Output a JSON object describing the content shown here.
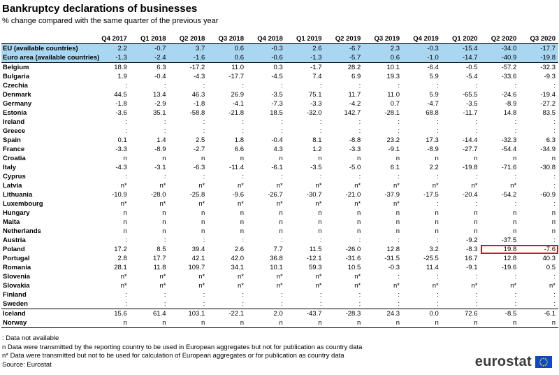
{
  "chart_data": {
    "type": "table",
    "title": "Bankruptcy declarations of businesses",
    "subtitle": "% change compared with the same quarter of the previous year",
    "corner_label": "",
    "columns": [
      "Q4 2017",
      "Q1 2018",
      "Q2 2018",
      "Q3 2018",
      "Q4 2018",
      "Q1 2019",
      "Q2 2019",
      "Q3 2019",
      "Q4 2019",
      "Q1 2020",
      "Q2 2020",
      "Q3 2020"
    ],
    "aggregate_rows": [
      {
        "name": "EU (available countries)",
        "values": [
          "2.2",
          "-0.7",
          "3.7",
          "0.6",
          "-0.3",
          "2.6",
          "-6.7",
          "2.3",
          "-0.3",
          "-15.4",
          "-34.0",
          "-17.7"
        ]
      },
      {
        "name": "Euro area (available countries)",
        "values": [
          "-1.3",
          "-2.4",
          "-1.6",
          "0.6",
          "-0.6",
          "-1.3",
          "-5.7",
          "0.6",
          "-1.0",
          "-14.7",
          "-40.9",
          "-19.8"
        ]
      }
    ],
    "rows": [
      {
        "name": "Belgium",
        "values": [
          "18.9",
          "6.3",
          "-17.2",
          "11.0",
          "0.3",
          "-1.7",
          "28.2",
          "10.1",
          "-6.4",
          "-0.5",
          "-57.2",
          "-32.3"
        ]
      },
      {
        "name": "Bulgaria",
        "values": [
          "1.9",
          "-0.4",
          "-4.3",
          "-17.7",
          "-4.5",
          "7.4",
          "6.9",
          "19.3",
          "5.9",
          "-5.4",
          "-33.6",
          "-9.3"
        ]
      },
      {
        "name": "Czechia",
        "values": [
          ":",
          ":",
          ":",
          ":",
          ":",
          ":",
          ":",
          ":",
          ":",
          ":",
          ":",
          ":"
        ]
      },
      {
        "name": "Denmark",
        "values": [
          "44.5",
          "13.4",
          "46.3",
          "26.9",
          "-3.5",
          "75.1",
          "11.7",
          "11.0",
          "5.9",
          "-65.5",
          "-24.6",
          "-19.4"
        ]
      },
      {
        "name": "Germany",
        "values": [
          "-1.8",
          "-2.9",
          "-1.8",
          "-4.1",
          "-7.3",
          "-3.3",
          "-4.2",
          "0.7",
          "-4.7",
          "-3.5",
          "-8.9",
          "-27.2"
        ]
      },
      {
        "name": "Estonia",
        "values": [
          "-3.6",
          "35.1",
          "-58.8",
          "-21.8",
          "18.5",
          "-32.0",
          "142.7",
          "-28.1",
          "68.8",
          "-11.7",
          "14.8",
          "83.5"
        ]
      },
      {
        "name": "Ireland",
        "values": [
          ":",
          ":",
          ":",
          ":",
          ":",
          ":",
          ":",
          ":",
          ":",
          ":",
          ":",
          ":"
        ]
      },
      {
        "name": "Greece",
        "values": [
          ":",
          ":",
          ":",
          ":",
          ":",
          ":",
          ":",
          ":",
          ":",
          ":",
          ":",
          ":"
        ]
      },
      {
        "name": "Spain",
        "values": [
          "0.1",
          "1.4",
          "2.5",
          "1.8",
          "-0.4",
          "8.1",
          "-8.8",
          "23.2",
          "17.3",
          "-14.4",
          "-32.3",
          "6.3"
        ]
      },
      {
        "name": "France",
        "values": [
          "-3.3",
          "-8.9",
          "-2.7",
          "6.6",
          "4.3",
          "1.2",
          "-3.3",
          "-9.1",
          "-8.9",
          "-27.7",
          "-54.4",
          "-34.9"
        ]
      },
      {
        "name": "Croatia",
        "values": [
          "n",
          "n",
          "n",
          "n",
          "n",
          "n",
          "n",
          "n",
          "n",
          "n",
          "n",
          "n"
        ]
      },
      {
        "name": "Italy",
        "values": [
          "-4.3",
          "-3.1",
          "-6.3",
          "-11.4",
          "-6.1",
          "-3.5",
          "-5.0",
          "6.1",
          "2.2",
          "-19.8",
          "-71.6",
          "-30.8"
        ]
      },
      {
        "name": "Cyprus",
        "values": [
          ":",
          ":",
          ":",
          ":",
          ":",
          ":",
          ":",
          ":",
          ":",
          ":",
          ":",
          ":"
        ]
      },
      {
        "name": "Latvia",
        "values": [
          "n*",
          "n*",
          "n*",
          "n*",
          "n*",
          "n*",
          "n*",
          "n*",
          "n*",
          "n*",
          "n*",
          ":"
        ]
      },
      {
        "name": "Lithuania",
        "values": [
          "-10.9",
          "-28.0",
          "-25.8",
          "-9.6",
          "-26.7",
          "-30.7",
          "-21.0",
          "-37.9",
          "-17.5",
          "-20.4",
          "-54.2",
          "-60.9"
        ]
      },
      {
        "name": "Luxembourg",
        "values": [
          "n*",
          "n*",
          "n*",
          "n*",
          "n*",
          "n*",
          "n*",
          "n*",
          ":",
          ":",
          ":",
          ":"
        ]
      },
      {
        "name": "Hungary",
        "values": [
          "n",
          "n",
          "n",
          "n",
          "n",
          "n",
          "n",
          "n",
          "n",
          "n",
          "n",
          "n"
        ]
      },
      {
        "name": "Malta",
        "values": [
          "n",
          "n",
          "n",
          "n",
          "n",
          "n",
          "n",
          "n",
          "n",
          "n",
          "n",
          "n"
        ]
      },
      {
        "name": "Netherlands",
        "values": [
          "n",
          "n",
          "n",
          "n",
          "n",
          "n",
          "n",
          "n",
          "n",
          "n",
          "n",
          "n"
        ]
      },
      {
        "name": "Austria",
        "values": [
          ":",
          ":",
          ":",
          ":",
          ":",
          ":",
          ":",
          ":",
          ":",
          "-9.2",
          "-37.5",
          ":"
        ]
      },
      {
        "name": "Poland",
        "values": [
          "17.2",
          "8.5",
          "39.4",
          "2.6",
          "7.7",
          "11.5",
          "-26.0",
          "12.8",
          "3.2",
          "-8.3",
          "19.8",
          "-7.6"
        ]
      },
      {
        "name": "Portugal",
        "values": [
          "2.8",
          "17.7",
          "42.1",
          "42.0",
          "36.8",
          "-12.1",
          "-31.6",
          "-31.5",
          "-25.5",
          "16.7",
          "12.8",
          "40.3"
        ]
      },
      {
        "name": "Romania",
        "values": [
          "28.1",
          "11.8",
          "109.7",
          "34.1",
          "10.1",
          "59.3",
          "10.5",
          "-0.3",
          "11.4",
          "-9.1",
          "-19.6",
          "0.5"
        ]
      },
      {
        "name": "Slovenia",
        "values": [
          "n*",
          "n*",
          "n*",
          "n*",
          "n*",
          "n*",
          "n*",
          ":",
          ":",
          ":",
          ":",
          ":"
        ]
      },
      {
        "name": "Slovakia",
        "values": [
          "n*",
          "n*",
          "n*",
          "n*",
          "n*",
          "n*",
          "n*",
          "n*",
          "n*",
          "n*",
          "n*",
          "n*"
        ]
      },
      {
        "name": "Finland",
        "values": [
          ":",
          ":",
          ":",
          ":",
          ":",
          ":",
          ":",
          ":",
          ":",
          ":",
          ":",
          ":"
        ]
      },
      {
        "name": "Sweden",
        "values": [
          ":",
          ":",
          ":",
          ":",
          ":",
          ":",
          ":",
          ":",
          ":",
          ":",
          ":",
          ":"
        ]
      }
    ],
    "other_rows": [
      {
        "name": "Iceland",
        "values": [
          "15.6",
          "61.4",
          "103.1",
          "-22.1",
          "2.0",
          "-43.7",
          "-28.3",
          "24.3",
          "0.0",
          "72.6",
          "-8.5",
          "-6.1"
        ]
      },
      {
        "name": "Norway",
        "values": [
          "n",
          "n",
          "n",
          "n",
          "n",
          "n",
          "n",
          "n",
          "n",
          "n",
          "n",
          "n"
        ]
      }
    ],
    "highlight": {
      "row": "Poland",
      "columns": [
        "Q2 2020",
        "Q3 2020"
      ],
      "color": "#d7141a"
    },
    "notes": [
      ":  Data not available",
      "n Data were transmitted by the reporting country to be used in European aggregates but not for publication as country data",
      "n* Data were transmitted but not to be used for calculation of European aggregates or for publication as country data",
      "Source: Eurostat"
    ]
  },
  "branding": {
    "logo_text": "eurostat",
    "flag_color": "#0e47cb",
    "star_color": "#ffdd00"
  },
  "colors": {
    "aggregate_bg": "#a9d7f1",
    "highlight_border": "#d7141a"
  }
}
